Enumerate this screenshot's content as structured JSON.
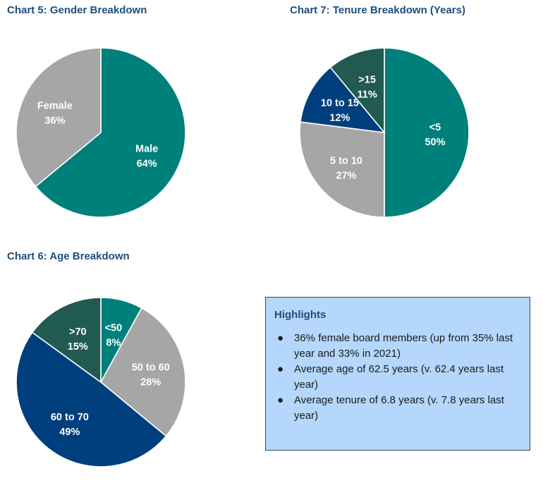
{
  "chart_data": [
    {
      "id": "chart5",
      "type": "pie",
      "title": "Chart 5: Gender Breakdown",
      "slices": [
        {
          "label": "Male",
          "value": 64,
          "display": "64%",
          "color": "#00807a"
        },
        {
          "label": "Female",
          "value": 36,
          "display": "36%",
          "color": "#a6a6a6"
        }
      ]
    },
    {
      "id": "chart7",
      "type": "pie",
      "title": "Chart 7: Tenure Breakdown (Years)",
      "slices": [
        {
          "label": "<5",
          "value": 50,
          "display": "50%",
          "color": "#00807a"
        },
        {
          "label": "5 to 10",
          "value": 27,
          "display": "27%",
          "color": "#a6a6a6"
        },
        {
          "label": "10 to 15",
          "value": 12,
          "display": "12%",
          "color": "#003f7d"
        },
        {
          "label": ">15",
          "value": 11,
          "display": "11%",
          "color": "#215a51"
        }
      ]
    },
    {
      "id": "chart6",
      "type": "pie",
      "title": "Chart 6: Age Breakdown",
      "slices": [
        {
          "label": "<50",
          "value": 8,
          "display": "8%",
          "color": "#00807a"
        },
        {
          "label": "50 to 60",
          "value": 28,
          "display": "28%",
          "color": "#a6a6a6"
        },
        {
          "label": "60 to 70",
          "value": 49,
          "display": "49%",
          "color": "#003f7d"
        },
        {
          "label": ">70",
          "value": 15,
          "display": "15%",
          "color": "#215a51"
        }
      ]
    }
  ],
  "highlights": {
    "title": "Highlights",
    "items": [
      "36% female board members (up from 35% last year and 33% in 2021)",
      "Average age of 62.5 years (v. 62.4 years last year)",
      "Average tenure of 6.8 years (v. 7.8 years last year)"
    ]
  }
}
